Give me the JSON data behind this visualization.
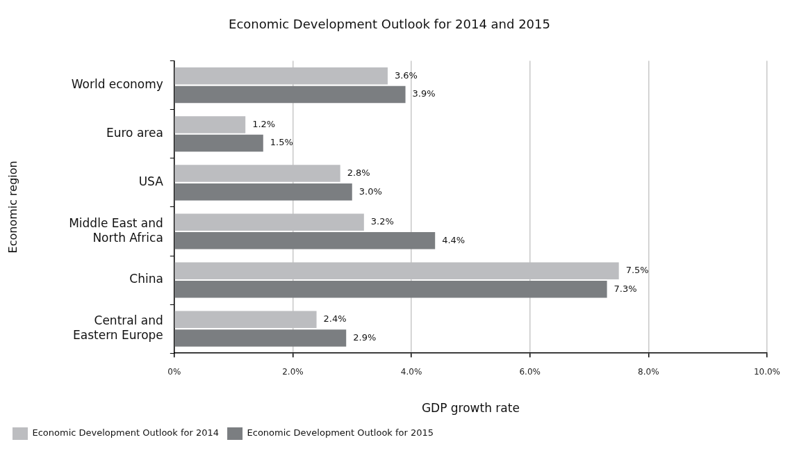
{
  "chart_data": {
    "type": "bar",
    "orientation": "horizontal",
    "title": "Economic Development Outlook for 2014 and 2015",
    "xlabel": "GDP growth rate",
    "ylabel": "Economic region",
    "categories": [
      "World economy",
      "Euro area",
      "USA",
      "Middle East and North Africa",
      "China",
      "Central and Eastern Europe"
    ],
    "series": [
      {
        "name": "Economic Development Outlook for 2014",
        "color": "#bcbdc0",
        "values": [
          3.6,
          1.2,
          2.8,
          3.2,
          7.5,
          2.4
        ],
        "value_labels": [
          "3.6%",
          "1.2%",
          "2.8%",
          "3.2%",
          "7.5%",
          "2.4%"
        ]
      },
      {
        "name": "Economic Development Outlook for 2015",
        "color": "#7b7e81",
        "values": [
          3.9,
          1.5,
          3.0,
          4.4,
          7.3,
          2.9
        ],
        "value_labels": [
          "3.9%",
          "1.5%",
          "3.0%",
          "4.4%",
          "7.3%",
          "2.9%"
        ]
      }
    ],
    "xlim": [
      0,
      10
    ],
    "xticks": [
      {
        "value": 0,
        "label": "0%"
      },
      {
        "value": 2,
        "label": "2.0%"
      },
      {
        "value": 4,
        "label": "4.0%"
      },
      {
        "value": 6,
        "label": "6.0%"
      },
      {
        "value": 8,
        "label": "8.0%"
      },
      {
        "value": 10,
        "label": "10.0%"
      }
    ],
    "grid": "x",
    "legend": "bottom left"
  }
}
